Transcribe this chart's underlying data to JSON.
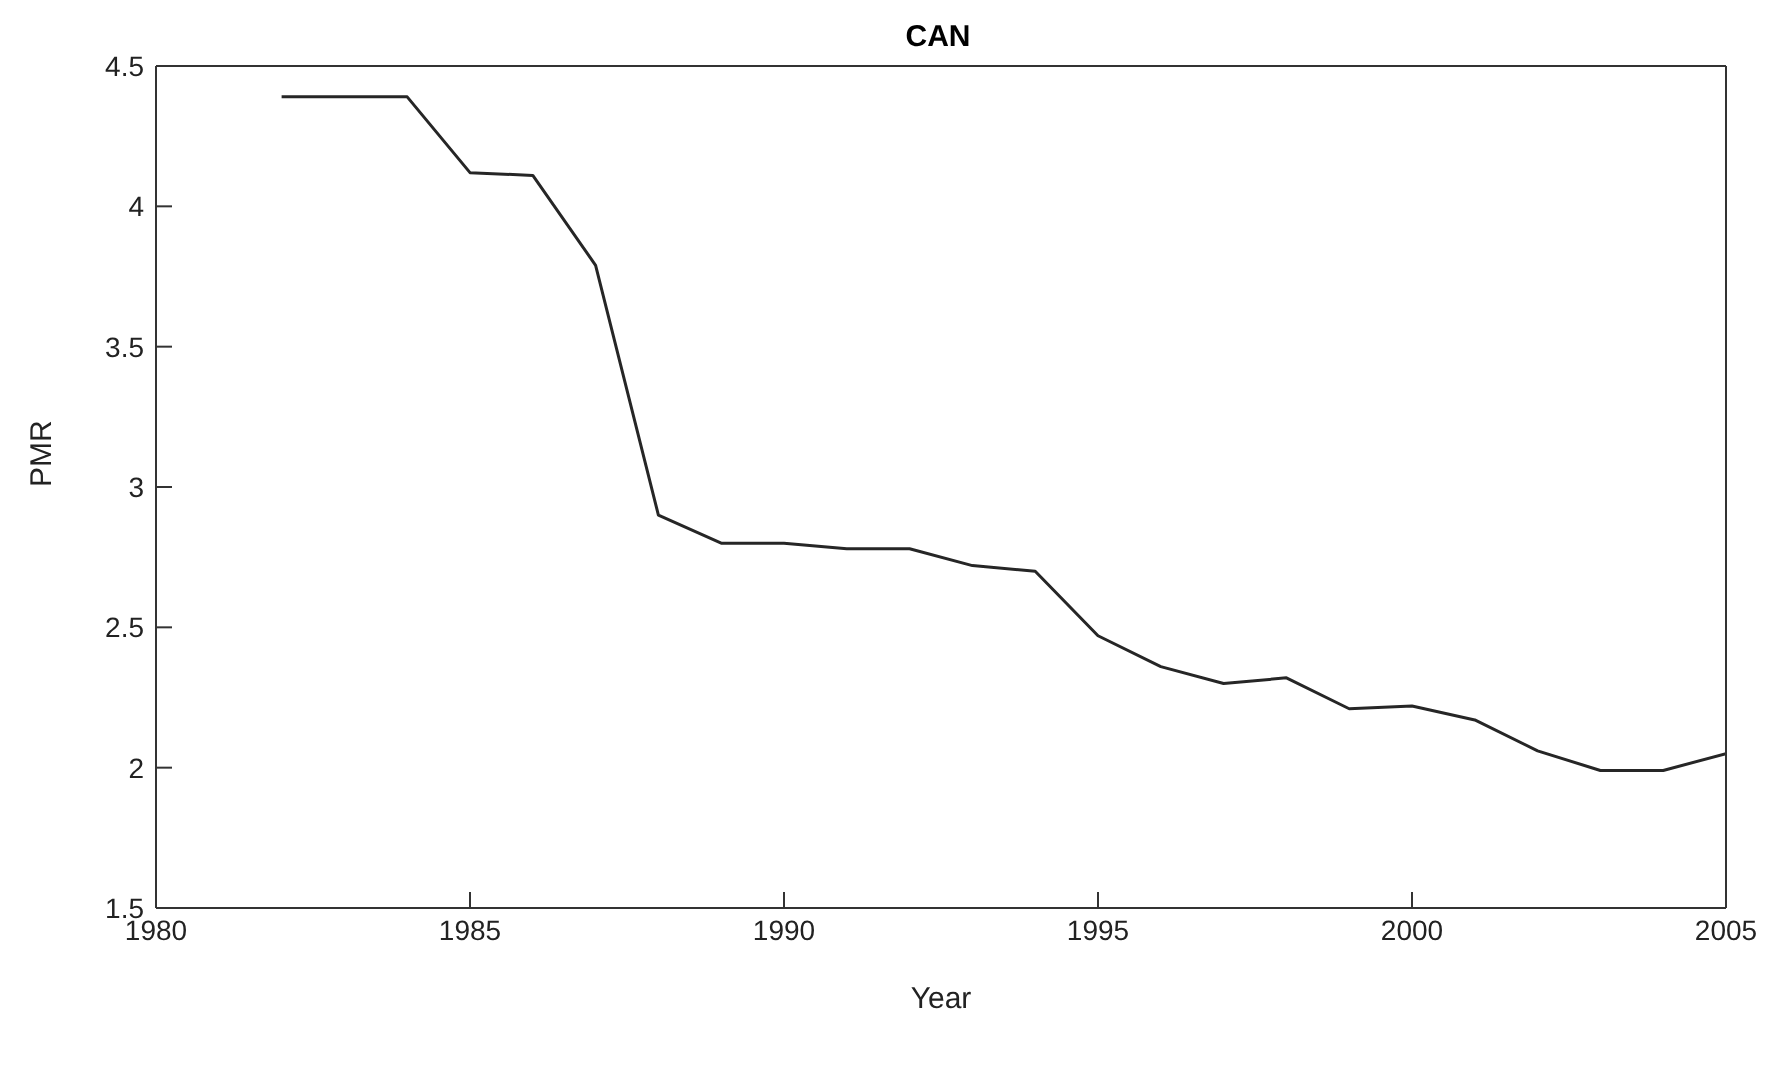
{
  "chart_data": {
    "type": "line",
    "title": "CAN",
    "xlabel": "Year",
    "ylabel": "PMR",
    "x": [
      1982,
      1983,
      1984,
      1985,
      1986,
      1987,
      1988,
      1989,
      1990,
      1991,
      1992,
      1993,
      1994,
      1995,
      1996,
      1997,
      1998,
      1999,
      2000,
      2001,
      2002,
      2003,
      2004,
      2005
    ],
    "series": [
      {
        "color": "#262626",
        "values": [
          4.39,
          4.39,
          4.39,
          4.12,
          4.11,
          3.79,
          2.9,
          2.8,
          2.8,
          2.78,
          2.78,
          2.72,
          2.7,
          2.47,
          2.36,
          2.3,
          2.32,
          2.21,
          2.22,
          2.17,
          2.06,
          1.99,
          1.99,
          2.05
        ]
      }
    ],
    "xlim": [
      1980,
      2005
    ],
    "xticks": [
      1980,
      1985,
      1990,
      1995,
      2000,
      2005
    ],
    "ylim": [
      1.5,
      4.5
    ],
    "yticks": [
      1.5,
      2,
      2.5,
      3,
      3.5,
      4,
      4.5
    ],
    "grid": false,
    "legend": false,
    "marker": "none",
    "line_style": "solid"
  }
}
